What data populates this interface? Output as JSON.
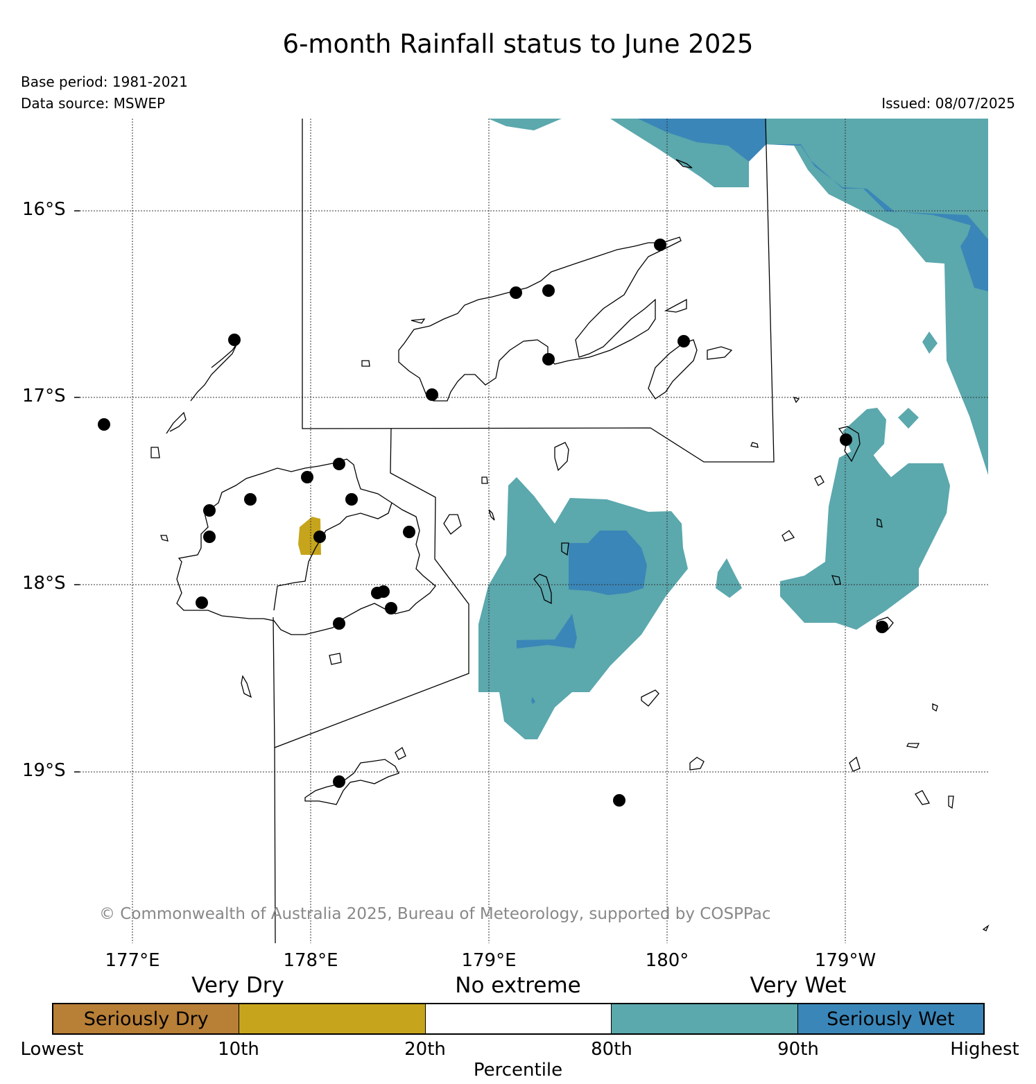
{
  "title": "6-month Rainfall status to June 2025",
  "base_period": "Base period: 1981-2021",
  "data_source": "Data source: MSWEP",
  "issued": "Issued: 08/07/2025",
  "copyright": "© Commonwealth of Australia 2025, Bureau of Meteorology, supported by COSPPac",
  "map": {
    "lat_labels": [
      "16°S",
      "17°S",
      "18°S",
      "19°S"
    ],
    "lon_labels": [
      "177°E",
      "178°E",
      "179°E",
      "180°",
      "179°W"
    ],
    "colors": {
      "seriously_dry": "#b87f37",
      "very_dry": "#c6a51c",
      "no_extreme": "#ffffff",
      "very_wet": "#5ba8ad",
      "seriously_wet": "#3a86b8"
    }
  },
  "legend": {
    "categories": [
      "Very Dry",
      "No extreme",
      "Very Wet"
    ],
    "segments": [
      {
        "label": "Seriously Dry",
        "color": "#b87f37"
      },
      {
        "label": "",
        "color": "#c6a51c"
      },
      {
        "label": "",
        "color": "#ffffff"
      },
      {
        "label": "",
        "color": "#5ba8ad"
      },
      {
        "label": "Seriously Wet",
        "color": "#3a86b8"
      }
    ],
    "ticks": [
      "Lowest",
      "10th",
      "20th",
      "80th",
      "90th",
      "Highest"
    ],
    "axis_label": "Percentile"
  }
}
